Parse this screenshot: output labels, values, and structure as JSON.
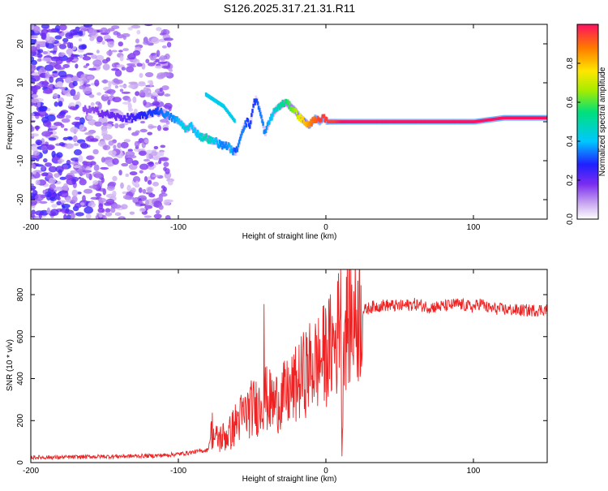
{
  "title": "S126.2025.317.21.31.R11",
  "chart_data": [
    {
      "type": "heatmap",
      "name": "spectrogram",
      "title": "S126.2025.317.21.31.R11",
      "xlabel": "Height of straight line (km)",
      "ylabel": "Frequency (Hz)",
      "xlim": [
        -200,
        150
      ],
      "ylim": [
        -25,
        25
      ],
      "xticks": [
        -200,
        -100,
        0,
        100
      ],
      "xtick_labels": [
        "-200",
        "-100",
        "0",
        "100"
      ],
      "yticks": [
        -20,
        -10,
        0,
        10,
        20
      ],
      "ytick_labels": [
        "-20",
        "-10",
        "0",
        "10",
        "20"
      ],
      "ridge": {
        "x": [
          -160,
          -150,
          -140,
          -130,
          -120,
          -115,
          -110,
          -105,
          -100,
          -95,
          -92,
          -88,
          -85,
          -82,
          -78,
          -75,
          -72,
          -68,
          -65,
          -62,
          -60,
          -58,
          -56,
          -54,
          -52,
          -50,
          -48,
          -45,
          -42,
          -38,
          -35,
          -32,
          -28,
          -25,
          -22,
          -20,
          -18,
          -15,
          -12,
          -10,
          -8,
          -5,
          -2,
          0,
          5,
          10,
          15,
          20,
          40,
          60,
          80,
          100,
          120,
          150
        ],
        "y": [
          3,
          2,
          1,
          1,
          2,
          3,
          2,
          1,
          0,
          -2,
          -1,
          -3,
          -4,
          -4,
          -5,
          -5,
          -6,
          -6,
          -7,
          -8,
          -6,
          -3,
          -1,
          0,
          -1,
          4,
          6,
          2,
          -3,
          1,
          3,
          4,
          5,
          4,
          3,
          2,
          1,
          0,
          -1,
          0,
          1,
          0,
          1,
          0,
          0,
          0,
          0,
          0,
          0,
          0,
          0,
          0,
          1,
          1
        ],
        "amplitude": [
          0.15,
          0.2,
          0.2,
          0.25,
          0.3,
          0.3,
          0.35,
          0.35,
          0.4,
          0.45,
          0.4,
          0.4,
          0.45,
          0.5,
          0.45,
          0.4,
          0.35,
          0.35,
          0.4,
          0.3,
          0.35,
          0.35,
          0.35,
          0.3,
          0.3,
          0.3,
          0.3,
          0.35,
          0.35,
          0.4,
          0.45,
          0.5,
          0.55,
          0.6,
          0.65,
          0.7,
          0.75,
          0.8,
          0.85,
          0.9,
          0.9,
          0.95,
          0.95,
          0.95,
          0.95,
          1.0,
          1.0,
          1.0,
          1.0,
          1.0,
          1.0,
          1.0,
          1.0,
          1.0
        ]
      },
      "secondary_arm": {
        "x": [
          -82,
          -78,
          -74,
          -70,
          -66,
          -62
        ],
        "y": [
          7,
          6,
          5,
          4,
          2,
          0
        ]
      },
      "colorbar": {
        "label": "Normalized spectral amplitude",
        "range": [
          0.0,
          1.0
        ],
        "ticks": [
          0.0,
          0.2,
          0.4,
          0.6,
          0.8
        ],
        "tick_labels": [
          "0.0",
          "0.2",
          "0.4",
          "0.6",
          "0.8"
        ]
      }
    },
    {
      "type": "line",
      "name": "snr",
      "xlabel": "Height of straight line (km)",
      "ylabel": "SNR (10 * v/v)",
      "xlim": [
        -200,
        150
      ],
      "ylim": [
        0,
        920
      ],
      "xticks": [
        -200,
        -100,
        0,
        100
      ],
      "xtick_labels": [
        "-200",
        "-100",
        "0",
        "100"
      ],
      "yticks": [
        0,
        200,
        400,
        600,
        800
      ],
      "ytick_labels": [
        "0",
        "200",
        "400",
        "600",
        "800"
      ],
      "color": "#ee2222",
      "series": [
        {
          "name": "SNR",
          "x": [
            -200,
            -180,
            -160,
            -140,
            -120,
            -110,
            -100,
            -95,
            -90,
            -85,
            -80,
            -77,
            -75,
            -70,
            -65,
            -60,
            -55,
            -50,
            -45,
            -42,
            -40,
            -35,
            -30,
            -25,
            -20,
            -15,
            -10,
            -5,
            0,
            5,
            8,
            10,
            11,
            12,
            15,
            20,
            25,
            30,
            40,
            50,
            60,
            70,
            80,
            90,
            100,
            105,
            110,
            120,
            130,
            140,
            150
          ],
          "y": [
            25,
            25,
            28,
            30,
            32,
            35,
            40,
            45,
            50,
            55,
            60,
            160,
            110,
            120,
            140,
            200,
            230,
            260,
            270,
            330,
            300,
            280,
            310,
            330,
            370,
            420,
            460,
            480,
            520,
            560,
            600,
            870,
            50,
            650,
            680,
            690,
            720,
            740,
            750,
            745,
            755,
            740,
            745,
            755,
            740,
            760,
            735,
            730,
            725,
            725,
            730
          ]
        }
      ],
      "spikes": [
        {
          "x": -42,
          "y": 755
        },
        {
          "x": 10,
          "y": 920
        },
        {
          "x": 11,
          "y": 30
        }
      ]
    }
  ]
}
